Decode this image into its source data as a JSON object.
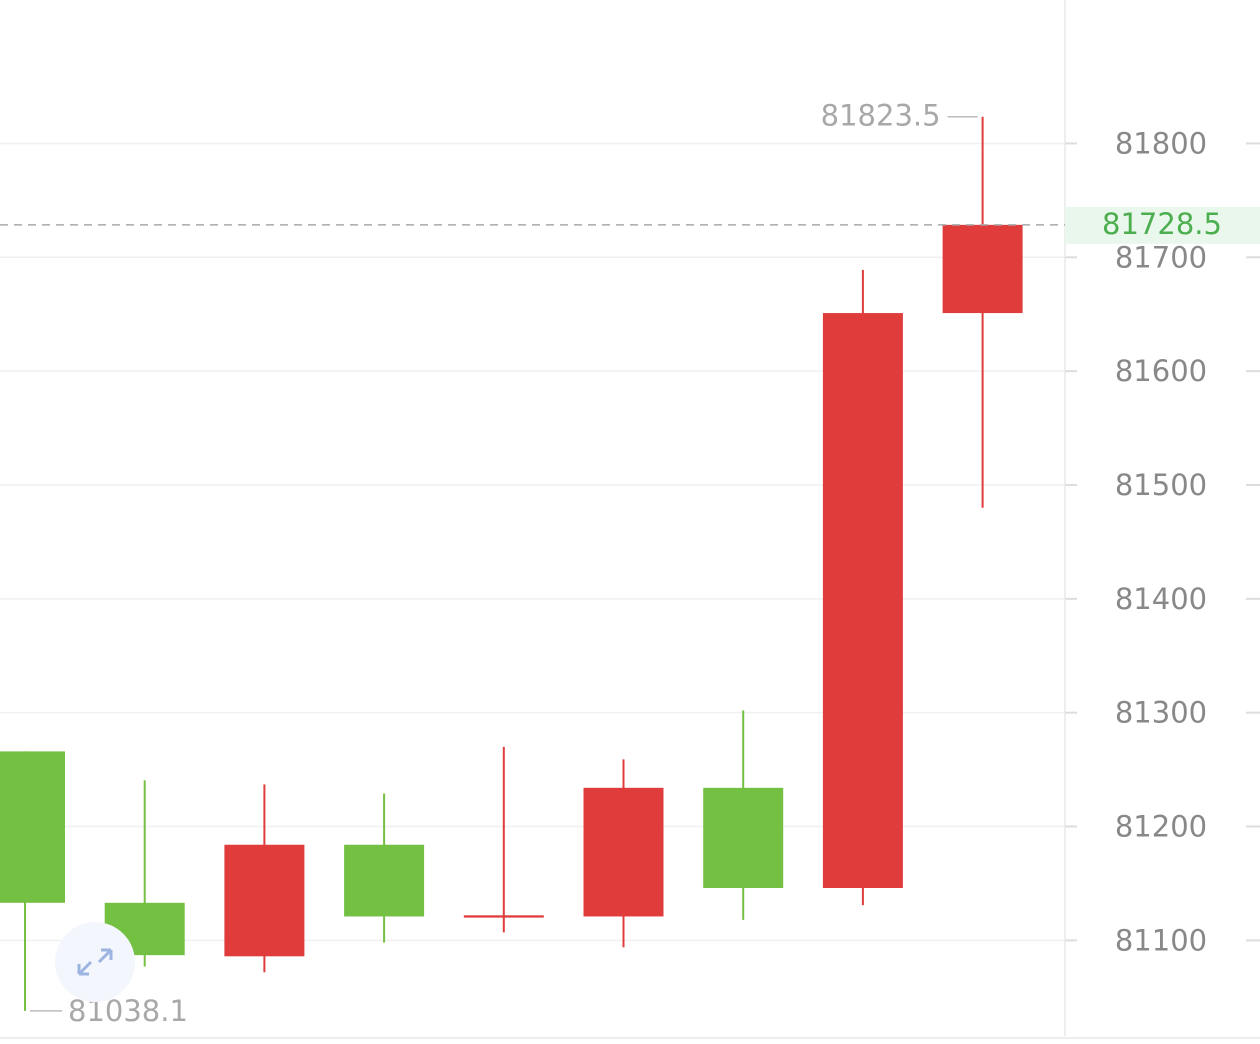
{
  "chart_data": {
    "type": "candlestick",
    "open": [
      81266,
      81133,
      81086,
      81184,
      81120,
      81121,
      81234,
      81146,
      81651
    ],
    "high": [
      81266,
      81240.5,
      81237,
      81229,
      81270,
      81259,
      81302,
      81689,
      81823.5
    ],
    "low": [
      81038.1,
      81077,
      81072,
      81098,
      81107,
      81094,
      81118,
      81131,
      81480
    ],
    "close": [
      81133,
      81087,
      81184,
      81121,
      81122,
      81234,
      81146,
      81651,
      81728.5
    ],
    "up_color": "#e03c3c",
    "down_color": "#74c043",
    "ylim": [
      81016,
      81926
    ],
    "yticks": [
      81100,
      81200,
      81300,
      81400,
      81500,
      81600,
      81700,
      81800
    ],
    "grid": true,
    "last_price_line": true
  }
}
